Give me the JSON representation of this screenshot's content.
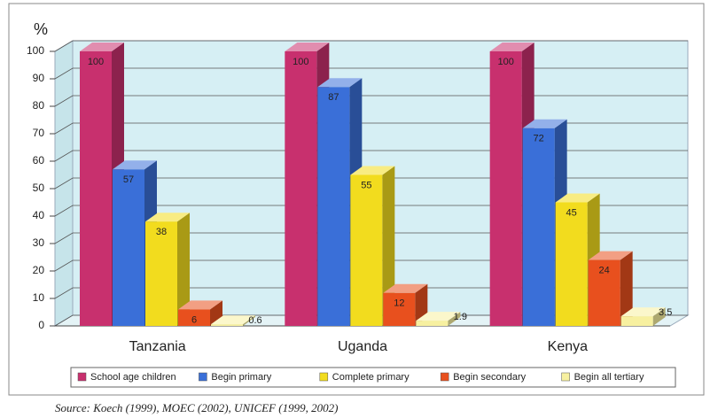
{
  "chart_data": {
    "type": "bar3d",
    "ylabel": "%",
    "categories": [
      "Tanzania",
      "Uganda",
      "Kenya"
    ],
    "series": [
      {
        "name": "School age children",
        "color": "#c8306e",
        "values": [
          100,
          100,
          100
        ]
      },
      {
        "name": "Begin primary",
        "color": "#3a6fd8",
        "values": [
          57,
          87,
          72
        ]
      },
      {
        "name": "Complete primary",
        "color": "#f2dc1e",
        "values": [
          38,
          55,
          45
        ]
      },
      {
        "name": "Begin secondary",
        "color": "#e8501e",
        "values": [
          6,
          12,
          24
        ]
      },
      {
        "name": "Begin all tertiary",
        "color": "#f7f0a0",
        "values": [
          0.6,
          1.9,
          3.5
        ]
      }
    ],
    "ylim": [
      0,
      100
    ],
    "yticks": [
      0,
      10,
      20,
      30,
      40,
      50,
      60,
      70,
      80,
      90,
      100
    ],
    "grid": true,
    "legend": "bottom",
    "source": "Source: Koech (1999), MOEC (2002), UNICEF (1999, 2002)"
  }
}
